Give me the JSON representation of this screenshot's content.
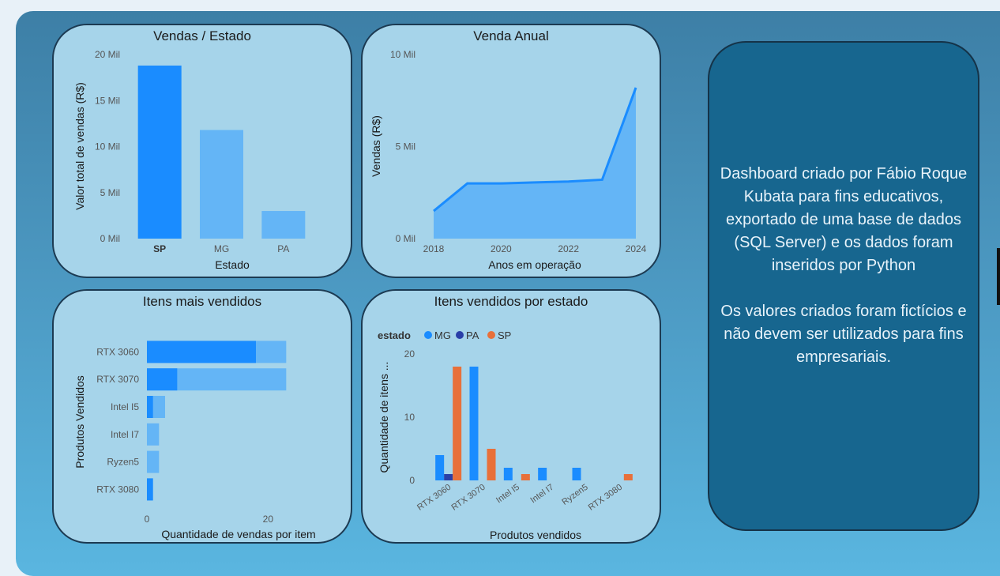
{
  "colors": {
    "primary": "#1a8cff",
    "light": "#64b5f6",
    "pa": "#2a3fa8",
    "sp": "#e8703a",
    "axis_text": "#555555"
  },
  "info": {
    "paragraph1": "Dashboard criado por Fábio Roque Kubata para fins educativos, exportado de uma base de dados (SQL Server) e os dados foram inseridos por Python",
    "paragraph2": "Os valores criados foram fictícios e não devem ser utilizados para fins empresariais."
  },
  "chart_data": [
    {
      "type": "bar",
      "title": "Vendas / Estado",
      "xlabel": "Estado",
      "ylabel": "Valor total de vendas (R$)",
      "categories": [
        "SP",
        "MG",
        "PA"
      ],
      "values": [
        18800,
        11800,
        3000
      ],
      "highlighted": "SP",
      "ylim": [
        0,
        20000
      ],
      "yticks": [
        0,
        5000,
        10000,
        15000,
        20000
      ],
      "ytick_labels": [
        "0 Mil",
        "5 Mil",
        "10 Mil",
        "15 Mil",
        "20 Mil"
      ]
    },
    {
      "type": "area",
      "title": "Venda Anual",
      "xlabel": "Anos em operação",
      "ylabel": "Vendas (R$)",
      "x": [
        2018,
        2019,
        2020,
        2021,
        2022,
        2023,
        2024
      ],
      "values": [
        1500,
        3000,
        3000,
        3050,
        3100,
        3200,
        8200
      ],
      "ylim": [
        0,
        10000
      ],
      "yticks": [
        0,
        5000,
        10000
      ],
      "ytick_labels": [
        "0 Mil",
        "5 Mil",
        "10 Mil"
      ],
      "xticks": [
        2018,
        2020,
        2022,
        2024
      ]
    },
    {
      "type": "bar",
      "orientation": "horizontal",
      "title": "Itens mais vendidos",
      "xlabel": "Quantidade de vendas por item",
      "ylabel": "Produtos Vendidos",
      "categories": [
        "RTX 3060",
        "RTX 3070",
        "Intel I5",
        "Intel I7",
        "Ryzen5",
        "RTX 3080"
      ],
      "values": [
        23,
        23,
        3,
        2,
        2,
        1
      ],
      "highlighted_values": [
        18,
        5,
        1,
        0,
        0,
        1
      ],
      "xlim": [
        0,
        30
      ],
      "xticks": [
        0,
        20
      ]
    },
    {
      "type": "bar",
      "title": "Itens vendidos por estado",
      "xlabel": "Produtos vendidos",
      "ylabel": "Quantidade de itens ...",
      "legend_title": "estado",
      "categories": [
        "RTX 3060",
        "RTX 3070",
        "Intel I5",
        "Intel I7",
        "Ryzen5",
        "RTX 3080"
      ],
      "series": [
        {
          "name": "MG",
          "values": [
            4,
            18,
            2,
            2,
            2,
            0
          ]
        },
        {
          "name": "PA",
          "values": [
            1,
            0,
            0,
            0,
            0,
            0
          ]
        },
        {
          "name": "SP",
          "values": [
            18,
            5,
            1,
            0,
            0,
            1
          ]
        }
      ],
      "ylim": [
        0,
        20
      ],
      "yticks": [
        0,
        10,
        20
      ]
    }
  ]
}
